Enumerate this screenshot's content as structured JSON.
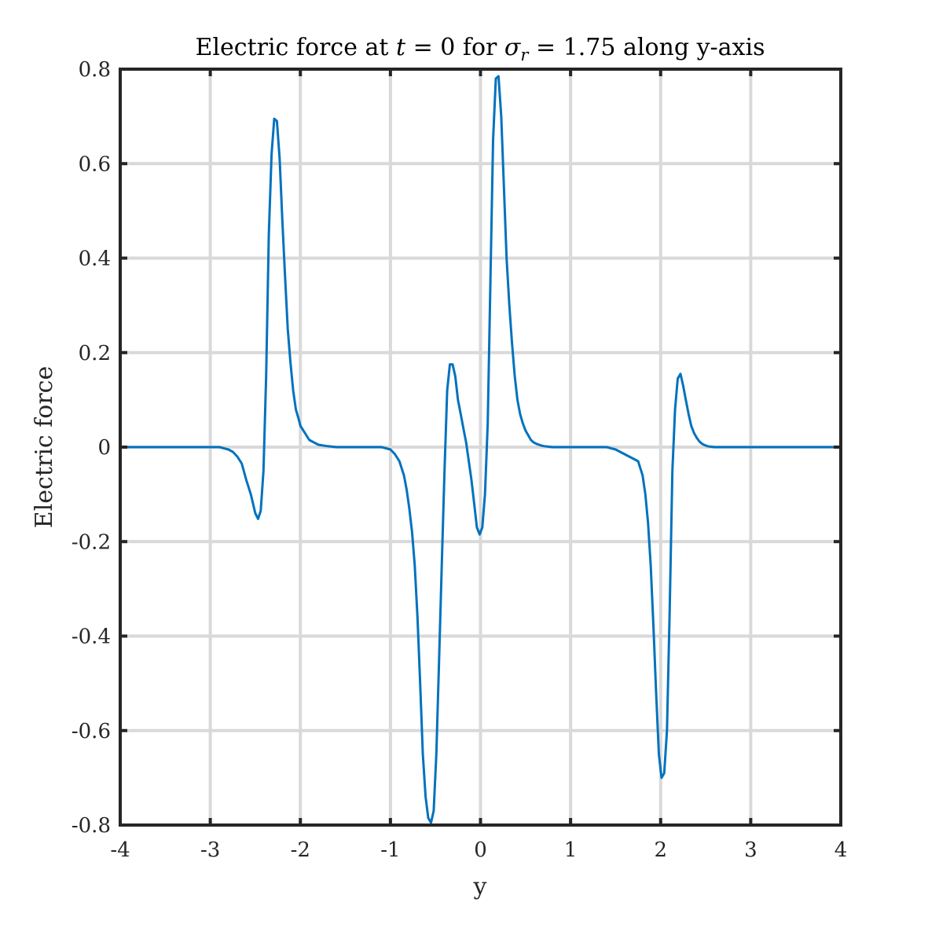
{
  "chart_data": {
    "type": "line",
    "title": {
      "prefix": "Electric force at ",
      "t_symbol": "t",
      "t_eq": " = 0 for ",
      "sigma_symbol": "σ",
      "sigma_sub": "r",
      "suffix": " = 1.75 along y-axis"
    },
    "xlabel": "y",
    "ylabel": "Electric force",
    "xlim": [
      -4,
      4
    ],
    "ylim": [
      -0.8,
      0.8
    ],
    "xticks": [
      -4,
      -3,
      -2,
      -1,
      0,
      1,
      2,
      3,
      4
    ],
    "xtick_labels": [
      "-4",
      "-3",
      "-2",
      "-1",
      "0",
      "1",
      "2",
      "3",
      "4"
    ],
    "yticks": [
      -0.8,
      -0.6,
      -0.4,
      -0.2,
      0,
      0.2,
      0.4,
      0.6,
      0.8
    ],
    "ytick_labels": [
      "-0.8",
      "-0.6",
      "-0.4",
      "-0.2",
      "0",
      "0.2",
      "0.4",
      "0.6",
      "0.8"
    ],
    "grid": true,
    "series": [
      {
        "color": "#0072BD",
        "x": [
          -4.0,
          -3.9,
          -3.8,
          -3.7,
          -3.6,
          -3.5,
          -3.4,
          -3.3,
          -3.2,
          -3.1,
          -3.0,
          -2.9,
          -2.8,
          -2.75,
          -2.7,
          -2.65,
          -2.6,
          -2.55,
          -2.5,
          -2.47,
          -2.44,
          -2.41,
          -2.38,
          -2.35,
          -2.32,
          -2.29,
          -2.26,
          -2.23,
          -2.2,
          -2.17,
          -2.14,
          -2.11,
          -2.08,
          -2.05,
          -2.02,
          -2.0,
          -1.95,
          -1.9,
          -1.85,
          -1.8,
          -1.7,
          -1.6,
          -1.5,
          -1.4,
          -1.3,
          -1.2,
          -1.1,
          -1.0,
          -0.95,
          -0.9,
          -0.85,
          -0.82,
          -0.79,
          -0.76,
          -0.73,
          -0.7,
          -0.67,
          -0.64,
          -0.61,
          -0.58,
          -0.55,
          -0.52,
          -0.49,
          -0.46,
          -0.43,
          -0.4,
          -0.37,
          -0.34,
          -0.31,
          -0.28,
          -0.25,
          -0.22,
          -0.19,
          -0.16,
          -0.13,
          -0.1,
          -0.07,
          -0.04,
          -0.01,
          0.02,
          0.05,
          0.08,
          0.11,
          0.14,
          0.17,
          0.2,
          0.23,
          0.26,
          0.29,
          0.32,
          0.35,
          0.38,
          0.41,
          0.44,
          0.47,
          0.5,
          0.53,
          0.56,
          0.59,
          0.62,
          0.65,
          0.68,
          0.71,
          0.75,
          0.8,
          0.9,
          1.0,
          1.1,
          1.2,
          1.3,
          1.4,
          1.5,
          1.6,
          1.7,
          1.75,
          1.8,
          1.83,
          1.86,
          1.89,
          1.92,
          1.95,
          1.98,
          2.01,
          2.04,
          2.07,
          2.1,
          2.13,
          2.16,
          2.19,
          2.22,
          2.25,
          2.28,
          2.31,
          2.34,
          2.37,
          2.4,
          2.43,
          2.46,
          2.49,
          2.52,
          2.55,
          2.6,
          2.7,
          2.8,
          2.9,
          3.0,
          3.2,
          3.4,
          3.6,
          3.8,
          4.0
        ],
        "y": [
          0.0,
          0.0,
          0.0,
          0.0,
          0.0,
          0.0,
          0.0,
          0.0,
          0.0,
          0.0,
          0.0,
          0.0,
          -0.005,
          -0.01,
          -0.02,
          -0.035,
          -0.07,
          -0.1,
          -0.14,
          -0.152,
          -0.135,
          -0.05,
          0.15,
          0.45,
          0.62,
          0.695,
          0.69,
          0.61,
          0.48,
          0.36,
          0.25,
          0.18,
          0.12,
          0.08,
          0.06,
          0.045,
          0.03,
          0.015,
          0.01,
          0.005,
          0.002,
          0.0,
          0.0,
          0.0,
          0.0,
          0.0,
          0.0,
          -0.005,
          -0.015,
          -0.03,
          -0.06,
          -0.09,
          -0.13,
          -0.18,
          -0.25,
          -0.36,
          -0.5,
          -0.65,
          -0.74,
          -0.785,
          -0.795,
          -0.77,
          -0.65,
          -0.45,
          -0.25,
          -0.05,
          0.12,
          0.175,
          0.175,
          0.15,
          0.1,
          0.07,
          0.04,
          0.01,
          -0.03,
          -0.07,
          -0.12,
          -0.17,
          -0.185,
          -0.17,
          -0.1,
          0.05,
          0.35,
          0.65,
          0.78,
          0.785,
          0.7,
          0.55,
          0.4,
          0.3,
          0.22,
          0.15,
          0.1,
          0.07,
          0.05,
          0.035,
          0.025,
          0.015,
          0.01,
          0.007,
          0.005,
          0.003,
          0.002,
          0.001,
          0.0,
          0.0,
          0.0,
          0.0,
          0.0,
          0.0,
          0.0,
          -0.005,
          -0.015,
          -0.025,
          -0.03,
          -0.06,
          -0.1,
          -0.16,
          -0.25,
          -0.38,
          -0.52,
          -0.65,
          -0.7,
          -0.69,
          -0.6,
          -0.35,
          -0.05,
          0.08,
          0.145,
          0.155,
          0.13,
          0.1,
          0.07,
          0.045,
          0.03,
          0.02,
          0.012,
          0.007,
          0.004,
          0.002,
          0.001,
          0.0,
          0.0,
          0.0,
          0.0,
          0.0,
          0.0,
          0.0,
          0.0,
          0.0,
          0.0
        ]
      }
    ]
  }
}
